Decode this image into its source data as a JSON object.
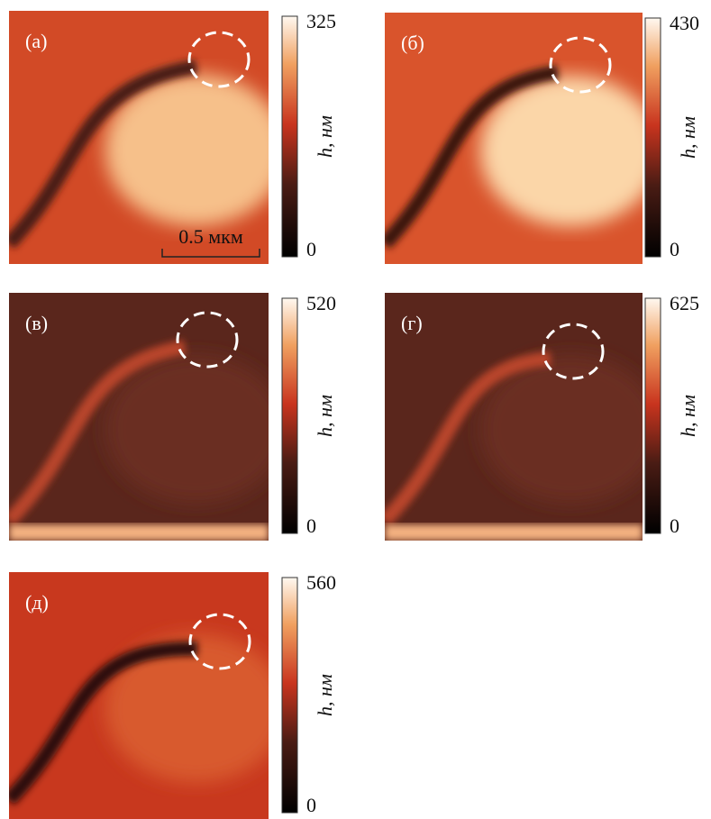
{
  "panels": [
    {
      "label": "(а)",
      "max": "325",
      "min": "0",
      "axis_label": "h, нм"
    },
    {
      "label": "(б)",
      "max": "430",
      "min": "0",
      "axis_label": "h, нм"
    },
    {
      "label": "(в)",
      "max": "520",
      "min": "0",
      "axis_label": "h, нм"
    },
    {
      "label": "(г)",
      "max": "625",
      "min": "0",
      "axis_label": "h, нм"
    },
    {
      "label": "(д)",
      "max": "560",
      "min": "0",
      "axis_label": "h, нм"
    }
  ],
  "scale_bar": "0.5 мкм"
}
